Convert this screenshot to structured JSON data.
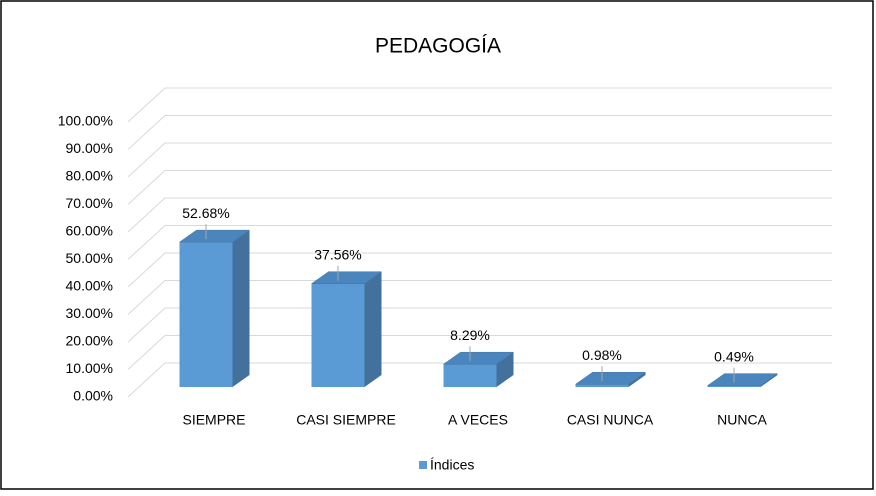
{
  "chart_data": {
    "type": "bar3d",
    "title": "PEDAGOGÍA",
    "categories": [
      "SIEMPRE",
      "CASI SIEMPRE",
      "A VECES",
      "CASI NUNCA",
      "NUNCA"
    ],
    "series": [
      {
        "name": "Índices",
        "color": "#5b9bd5",
        "values": [
          52.68,
          37.56,
          8.29,
          0.98,
          0.49
        ],
        "value_labels": [
          "52.68%",
          "37.56%",
          "8.29%",
          "0.98%",
          "0.49%"
        ]
      }
    ],
    "ylim": [
      0,
      100
    ],
    "yticks": [
      {
        "value": 0,
        "label": "0.00%"
      },
      {
        "value": 10,
        "label": "10.00%"
      },
      {
        "value": 20,
        "label": "20.00%"
      },
      {
        "value": 30,
        "label": "30.00%"
      },
      {
        "value": 40,
        "label": "40.00%"
      },
      {
        "value": 50,
        "label": "50.00%"
      },
      {
        "value": 60,
        "label": "60.00%"
      },
      {
        "value": 70,
        "label": "70.00%"
      },
      {
        "value": 80,
        "label": "80.00%"
      },
      {
        "value": 90,
        "label": "90.00%"
      },
      {
        "value": 100,
        "label": "100.00%"
      }
    ],
    "grid": true,
    "legend": "bottom"
  }
}
